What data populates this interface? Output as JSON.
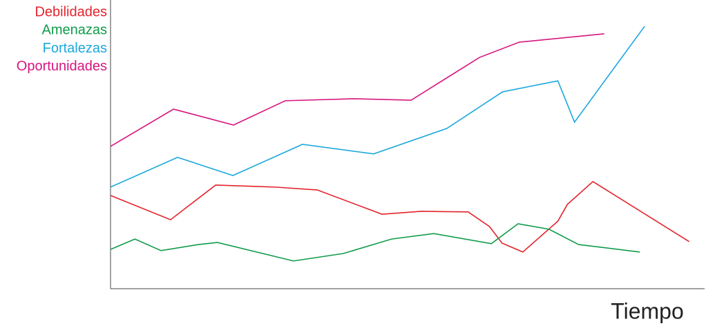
{
  "chart_data": {
    "type": "line",
    "xlabel": "Tiempo",
    "xlim": [
      0,
      100
    ],
    "ylim": [
      0,
      100
    ],
    "grid": false,
    "legend": "top-left",
    "series": [
      {
        "name": "Debilidades",
        "color": "#e3232c",
        "x": [
          0,
          10.1,
          17.7,
          27.7,
          34.8,
          45.7,
          52.3,
          60.2,
          63.8,
          65.9,
          69.4,
          75.3,
          76.9,
          81.2,
          97.4
        ],
        "values": [
          32.3,
          23.9,
          35.9,
          35.2,
          34.2,
          25.8,
          26.8,
          26.6,
          21.5,
          15.8,
          12.7,
          23.4,
          29.2,
          37.1,
          16.3
        ]
      },
      {
        "name": "Amenazas",
        "color": "#0f9b4a",
        "x": [
          0,
          4.1,
          8.5,
          14.8,
          18.0,
          30.8,
          39.2,
          47.3,
          54.4,
          64.1,
          68.6,
          73.8,
          78.8,
          89.1
        ],
        "values": [
          13.6,
          17.2,
          13.2,
          15.3,
          16.0,
          9.6,
          12.2,
          17.2,
          19.1,
          15.6,
          22.5,
          20.6,
          15.3,
          12.7
        ]
      },
      {
        "name": "Fortalezas",
        "color": "#1ca7dd",
        "x": [
          0,
          11.3,
          20.6,
          32.3,
          44.3,
          56.6,
          66.0,
          75.3,
          78.1,
          89.9
        ],
        "values": [
          35.2,
          45.5,
          39.2,
          50.0,
          46.7,
          55.5,
          68.2,
          72.0,
          57.7,
          90.9
        ]
      },
      {
        "name": "Oportunidades",
        "color": "#d6157e",
        "x": [
          0,
          10.6,
          20.7,
          29.4,
          41.0,
          50.6,
          62.1,
          68.8,
          83.1
        ],
        "values": [
          49.3,
          62.2,
          56.7,
          65.1,
          65.8,
          65.3,
          80.1,
          85.4,
          88.3
        ]
      }
    ]
  }
}
